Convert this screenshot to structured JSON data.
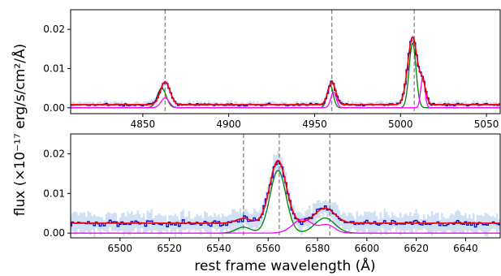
{
  "figure": {
    "ylabel": "flux (×10⁻¹⁷ erg/s/cm²/Å)",
    "xlabel": "rest frame wavelength (Å)"
  },
  "colors": {
    "data": "#0000cc",
    "error_band": "#aac8ea",
    "model_total": "#ff0000",
    "broad_component": "#008000",
    "narrow_component": "#ff00ff",
    "line_marker": "#888888",
    "fit_pink": "#ff33aa"
  },
  "chart_data": [
    {
      "type": "line",
      "panel": "top",
      "xlim": [
        4808,
        5058
      ],
      "ylim": [
        -0.0015,
        0.025
      ],
      "xticks": [
        4850,
        4900,
        4950,
        5000,
        5050
      ],
      "xtick_labels": [
        "4850",
        "4900",
        "4950",
        "5000",
        "5050"
      ],
      "yticks": [
        0.0,
        0.01,
        0.02
      ],
      "ytick_labels": [
        "0.00",
        "0.01",
        "0.02"
      ],
      "vlines": [
        4863,
        4960,
        5008
      ],
      "continuum": 0.0008,
      "gaussians_total": [
        {
          "center": 4863,
          "amp": 0.0058,
          "sigma": 2.8
        },
        {
          "center": 4960,
          "amp": 0.0058,
          "sigma": 2.2
        },
        {
          "center": 5007,
          "amp": 0.0172,
          "sigma": 2.8
        },
        {
          "center": 5013,
          "amp": 0.005,
          "sigma": 1.8
        }
      ],
      "gaussians_green": [
        {
          "center": 4861,
          "amp": 0.005,
          "sigma": 2.6
        },
        {
          "center": 4959,
          "amp": 0.0058,
          "sigma": 1.8
        },
        {
          "center": 5007,
          "amp": 0.0165,
          "sigma": 2.0
        }
      ],
      "gaussians_magenta": [
        {
          "center": 4863,
          "amp": 0.0025,
          "sigma": 2.4
        },
        {
          "center": 4961,
          "amp": 0.004,
          "sigma": 1.6
        },
        {
          "center": 5013,
          "amp": 0.008,
          "sigma": 1.2
        }
      ]
    },
    {
      "type": "line",
      "panel": "bottom",
      "xlim": [
        6480,
        6654
      ],
      "ylim": [
        -0.0012,
        0.025
      ],
      "xticks": [
        6500,
        6520,
        6540,
        6560,
        6580,
        6600,
        6620,
        6640
      ],
      "xtick_labels": [
        "6500",
        "6520",
        "6540",
        "6560",
        "6580",
        "6600",
        "6620",
        "6640"
      ],
      "yticks": [
        0.0,
        0.01,
        0.02
      ],
      "ytick_labels": [
        "0.00",
        "0.01",
        "0.02"
      ],
      "vlines": [
        6550,
        6564.5,
        6585
      ],
      "continuum": 0.0025,
      "gaussians_total": [
        {
          "center": 6550,
          "amp": 0.0012,
          "sigma": 3
        },
        {
          "center": 6564,
          "amp": 0.0158,
          "sigma": 3.3
        },
        {
          "center": 6583,
          "amp": 0.0038,
          "sigma": 4
        }
      ],
      "gaussians_green": [
        {
          "center": 6550,
          "amp": 0.0015,
          "sigma": 3
        },
        {
          "center": 6564,
          "amp": 0.0158,
          "sigma": 3.2
        },
        {
          "center": 6583,
          "amp": 0.0038,
          "sigma": 4
        }
      ],
      "gaussians_magenta": [
        {
          "center": 6574,
          "amp": 0.0035,
          "sigma": 4
        },
        {
          "center": 6584,
          "amp": 0.002,
          "sigma": 3
        }
      ]
    }
  ]
}
